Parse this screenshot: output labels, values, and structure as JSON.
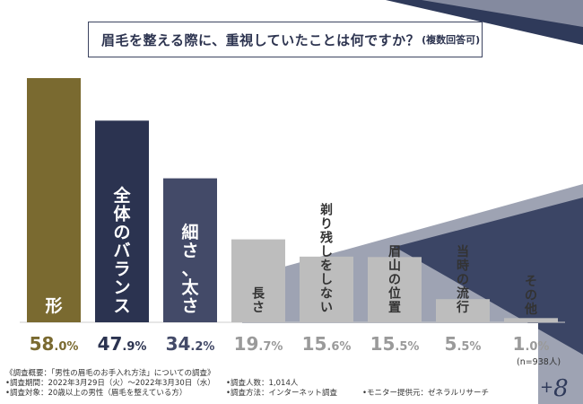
{
  "chart_data": {
    "type": "bar",
    "title": "眉毛を整える際に、重視していたことは何ですか？",
    "title_note": "(複数回答可)",
    "ylabel": "",
    "xlabel": "",
    "ylim": [
      0,
      60
    ],
    "categories": [
      "形",
      "全体のバランス",
      "細さ、太さ",
      "長さ",
      "剃り残しをしない",
      "眉山の位置",
      "当時の流行",
      "その他"
    ],
    "values": [
      58.0,
      47.9,
      34.2,
      19.7,
      15.6,
      15.5,
      5.5,
      1.0
    ],
    "value_labels": [
      "58.0%",
      "47.9%",
      "34.2%",
      "19.7%",
      "15.6%",
      "15.5%",
      "5.5%",
      "1.0%"
    ],
    "bar_colors": [
      "#7a6a30",
      "#2b3350",
      "#434a68",
      "#bdbdbd",
      "#bdbdbd",
      "#bdbdbd",
      "#bdbdbd",
      "#bdbdbd"
    ],
    "value_colors": [
      "#7a6a30",
      "#2b3350",
      "#434a68",
      "#9a9a9a",
      "#9a9a9a",
      "#9a9a9a",
      "#9a9a9a",
      "#9a9a9a"
    ],
    "label_colors": [
      "#ffffff",
      "#ffffff",
      "#ffffff",
      "#333333",
      "#333333",
      "#333333",
      "#333333",
      "#333333"
    ],
    "sample_size": "(n=938人)"
  },
  "footer": {
    "survey_title": "《調査概要：「男性の眉毛のお手入れ方法」についての調査》",
    "period": "•調査期間：2022年3月29日（火）〜2022年3月30日（水）",
    "target": "•調査対象：20歳以上の男性（眉毛を整えている方）",
    "count": "•調査人数：1,014人",
    "method": "•調査方法：インターネット調査",
    "provider": "•モニター提供元：ゼネラルリサーチ"
  },
  "logo": {
    "plus": "+",
    "text": "8"
  },
  "colors": {
    "navy": "#2f3a5a",
    "slate": "#8a8fa2",
    "olive": "#7a6a30"
  }
}
